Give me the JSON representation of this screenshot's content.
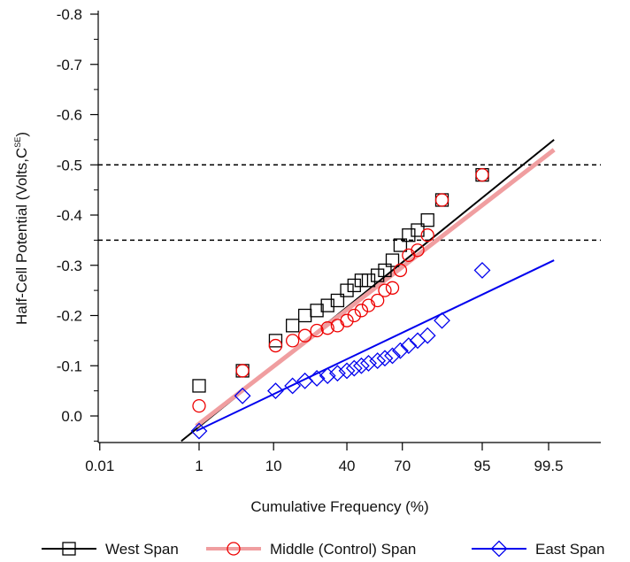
{
  "chart_data": {
    "type": "scatter",
    "title": "",
    "xlabel": "Cumulative Frequency (%)",
    "ylabel": "Half-Cell Potential (Volts,C",
    "ylabel_sup": "SE",
    "ylabel_close": ")",
    "x_ticks": [
      "0.01",
      "1",
      "10",
      "40",
      "70",
      "95",
      "99.5"
    ],
    "x_tick_values": [
      0.01,
      1,
      10,
      40,
      70,
      95,
      99.5
    ],
    "y_ticks": [
      "-0.8",
      "-0.7",
      "-0.6",
      "-0.5",
      "-0.4",
      "-0.3",
      "-0.2",
      "-0.1",
      "0.0"
    ],
    "y_tick_values": [
      -0.8,
      -0.7,
      -0.6,
      -0.5,
      -0.4,
      -0.3,
      -0.2,
      -0.1,
      0.0
    ],
    "y_range": [
      -0.8,
      0.05
    ],
    "x_scale": "probability",
    "reference_lines": [
      -0.5,
      -0.35
    ],
    "legend_position": "bottom",
    "series": [
      {
        "name": "West Span",
        "color": "#000000",
        "marker": "square",
        "points": [
          [
            1.0,
            -0.06
          ],
          [
            4.3,
            -0.09
          ],
          [
            10.5,
            -0.15
          ],
          [
            15.5,
            -0.18
          ],
          [
            20,
            -0.2
          ],
          [
            25,
            -0.21
          ],
          [
            30,
            -0.22
          ],
          [
            35,
            -0.23
          ],
          [
            40,
            -0.25
          ],
          [
            44,
            -0.26
          ],
          [
            48,
            -0.27
          ],
          [
            52,
            -0.27
          ],
          [
            57,
            -0.28
          ],
          [
            61,
            -0.29
          ],
          [
            65,
            -0.31
          ],
          [
            69,
            -0.34
          ],
          [
            73,
            -0.36
          ],
          [
            77,
            -0.37
          ],
          [
            81,
            -0.39
          ],
          [
            86,
            -0.43
          ],
          [
            95,
            -0.48
          ]
        ],
        "fit_line": [
          [
            0.5,
            0.05
          ],
          [
            99.6,
            -0.55
          ]
        ],
        "fit_width": 2
      },
      {
        "name": "Middle (Control) Span",
        "color": "#f09ea0",
        "marker_color": "#ee0000",
        "marker": "circle",
        "points": [
          [
            1.0,
            -0.02
          ],
          [
            4.3,
            -0.09
          ],
          [
            10.5,
            -0.14
          ],
          [
            15.5,
            -0.15
          ],
          [
            20,
            -0.16
          ],
          [
            25,
            -0.17
          ],
          [
            30,
            -0.175
          ],
          [
            35,
            -0.18
          ],
          [
            40,
            -0.19
          ],
          [
            44,
            -0.2
          ],
          [
            48,
            -0.21
          ],
          [
            52,
            -0.22
          ],
          [
            57,
            -0.23
          ],
          [
            61,
            -0.25
          ],
          [
            65,
            -0.255
          ],
          [
            69,
            -0.29
          ],
          [
            73,
            -0.32
          ],
          [
            77,
            -0.33
          ],
          [
            81,
            -0.36
          ],
          [
            86,
            -0.43
          ],
          [
            95,
            -0.48
          ]
        ],
        "fit_line": [
          [
            0.9,
            0.02
          ],
          [
            99.6,
            -0.53
          ]
        ],
        "fit_width": 5
      },
      {
        "name": "East Span",
        "color": "#0000ee",
        "marker": "diamond",
        "points": [
          [
            1.0,
            0.03
          ],
          [
            4.3,
            -0.04
          ],
          [
            10.5,
            -0.05
          ],
          [
            15.5,
            -0.06
          ],
          [
            20,
            -0.07
          ],
          [
            25,
            -0.075
          ],
          [
            30,
            -0.08
          ],
          [
            35,
            -0.085
          ],
          [
            40,
            -0.09
          ],
          [
            44,
            -0.095
          ],
          [
            48,
            -0.1
          ],
          [
            52,
            -0.105
          ],
          [
            57,
            -0.11
          ],
          [
            61,
            -0.115
          ],
          [
            65,
            -0.12
          ],
          [
            69,
            -0.13
          ],
          [
            73,
            -0.14
          ],
          [
            77,
            -0.15
          ],
          [
            81,
            -0.16
          ],
          [
            86,
            -0.19
          ],
          [
            95,
            -0.29
          ]
        ],
        "fit_line": [
          [
            0.9,
            0.03
          ],
          [
            99.6,
            -0.31
          ]
        ],
        "fit_width": 2
      }
    ]
  }
}
